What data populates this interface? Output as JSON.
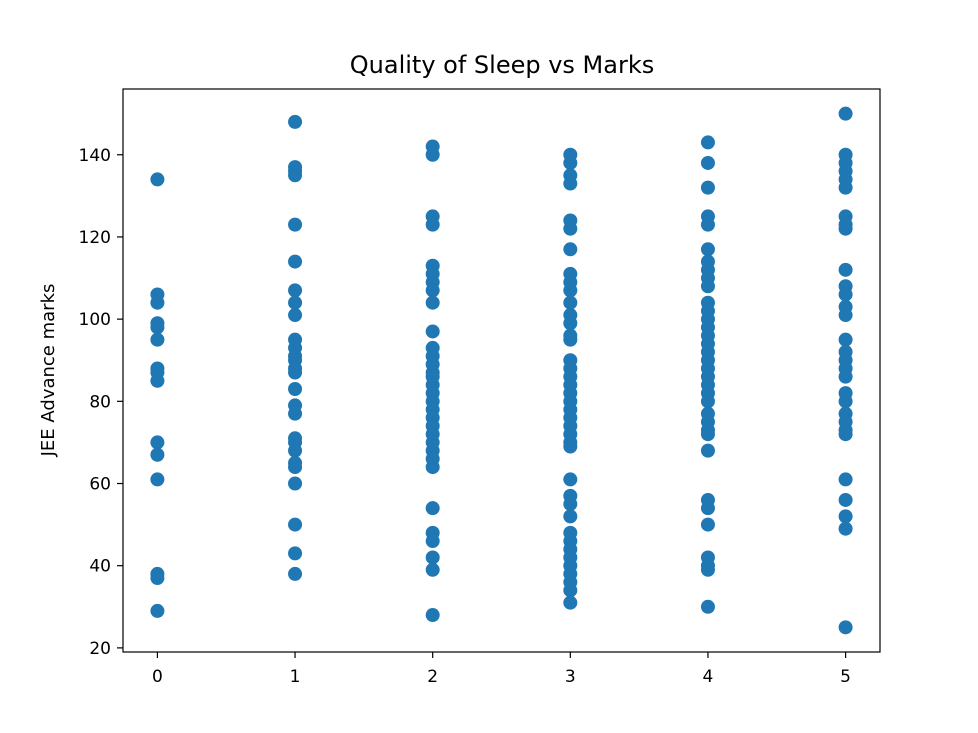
{
  "chart_data": {
    "type": "scatter",
    "title": "Quality of Sleep vs Marks",
    "xlabel": "",
    "ylabel": "JEE Advance marks",
    "xlim": [
      -0.25,
      5.25
    ],
    "ylim": [
      19,
      156
    ],
    "xticks": [
      0,
      1,
      2,
      3,
      4,
      5
    ],
    "yticks": [
      20,
      40,
      60,
      80,
      100,
      120,
      140
    ],
    "color": "#1f77b4",
    "grid": false,
    "series": [
      {
        "points": [
          [
            0,
            134
          ],
          [
            0,
            106
          ],
          [
            0,
            104
          ],
          [
            0,
            99
          ],
          [
            0,
            98
          ],
          [
            0,
            95
          ],
          [
            0,
            88
          ],
          [
            0,
            87
          ],
          [
            0,
            85
          ],
          [
            0,
            70
          ],
          [
            0,
            67
          ],
          [
            0,
            61
          ],
          [
            0,
            38
          ],
          [
            0,
            37
          ],
          [
            0,
            29
          ],
          [
            1,
            148
          ],
          [
            1,
            137
          ],
          [
            1,
            136
          ],
          [
            1,
            135
          ],
          [
            1,
            123
          ],
          [
            1,
            114
          ],
          [
            1,
            107
          ],
          [
            1,
            104
          ],
          [
            1,
            101
          ],
          [
            1,
            95
          ],
          [
            1,
            93
          ],
          [
            1,
            91
          ],
          [
            1,
            90
          ],
          [
            1,
            88
          ],
          [
            1,
            87
          ],
          [
            1,
            83
          ],
          [
            1,
            79
          ],
          [
            1,
            77
          ],
          [
            1,
            71
          ],
          [
            1,
            70
          ],
          [
            1,
            68
          ],
          [
            1,
            65
          ],
          [
            1,
            64
          ],
          [
            1,
            60
          ],
          [
            1,
            50
          ],
          [
            1,
            43
          ],
          [
            1,
            38
          ],
          [
            2,
            142
          ],
          [
            2,
            140
          ],
          [
            2,
            125
          ],
          [
            2,
            123
          ],
          [
            2,
            113
          ],
          [
            2,
            111
          ],
          [
            2,
            109
          ],
          [
            2,
            107
          ],
          [
            2,
            104
          ],
          [
            2,
            97
          ],
          [
            2,
            93
          ],
          [
            2,
            91
          ],
          [
            2,
            89
          ],
          [
            2,
            87
          ],
          [
            2,
            86
          ],
          [
            2,
            84
          ],
          [
            2,
            82
          ],
          [
            2,
            80
          ],
          [
            2,
            78
          ],
          [
            2,
            76
          ],
          [
            2,
            74
          ],
          [
            2,
            72
          ],
          [
            2,
            70
          ],
          [
            2,
            68
          ],
          [
            2,
            66
          ],
          [
            2,
            64
          ],
          [
            2,
            54
          ],
          [
            2,
            48
          ],
          [
            2,
            46
          ],
          [
            2,
            42
          ],
          [
            2,
            39
          ],
          [
            2,
            28
          ],
          [
            3,
            140
          ],
          [
            3,
            138
          ],
          [
            3,
            135
          ],
          [
            3,
            133
          ],
          [
            3,
            124
          ],
          [
            3,
            122
          ],
          [
            3,
            117
          ],
          [
            3,
            111
          ],
          [
            3,
            109
          ],
          [
            3,
            107
          ],
          [
            3,
            104
          ],
          [
            3,
            101
          ],
          [
            3,
            99
          ],
          [
            3,
            96
          ],
          [
            3,
            95
          ],
          [
            3,
            90
          ],
          [
            3,
            88
          ],
          [
            3,
            86
          ],
          [
            3,
            84
          ],
          [
            3,
            82
          ],
          [
            3,
            80
          ],
          [
            3,
            78
          ],
          [
            3,
            76
          ],
          [
            3,
            74
          ],
          [
            3,
            72
          ],
          [
            3,
            70
          ],
          [
            3,
            69
          ],
          [
            3,
            61
          ],
          [
            3,
            57
          ],
          [
            3,
            55
          ],
          [
            3,
            52
          ],
          [
            3,
            48
          ],
          [
            3,
            46
          ],
          [
            3,
            44
          ],
          [
            3,
            42
          ],
          [
            3,
            40
          ],
          [
            3,
            38
          ],
          [
            3,
            36
          ],
          [
            3,
            34
          ],
          [
            3,
            31
          ],
          [
            4,
            143
          ],
          [
            4,
            138
          ],
          [
            4,
            132
          ],
          [
            4,
            125
          ],
          [
            4,
            123
          ],
          [
            4,
            117
          ],
          [
            4,
            114
          ],
          [
            4,
            112
          ],
          [
            4,
            110
          ],
          [
            4,
            108
          ],
          [
            4,
            104
          ],
          [
            4,
            102
          ],
          [
            4,
            100
          ],
          [
            4,
            98
          ],
          [
            4,
            96
          ],
          [
            4,
            94
          ],
          [
            4,
            92
          ],
          [
            4,
            90
          ],
          [
            4,
            88
          ],
          [
            4,
            86
          ],
          [
            4,
            84
          ],
          [
            4,
            82
          ],
          [
            4,
            80
          ],
          [
            4,
            77
          ],
          [
            4,
            75
          ],
          [
            4,
            73
          ],
          [
            4,
            72
          ],
          [
            4,
            68
          ],
          [
            4,
            56
          ],
          [
            4,
            54
          ],
          [
            4,
            50
          ],
          [
            4,
            42
          ],
          [
            4,
            40
          ],
          [
            4,
            39
          ],
          [
            4,
            30
          ],
          [
            5,
            150
          ],
          [
            5,
            140
          ],
          [
            5,
            138
          ],
          [
            5,
            136
          ],
          [
            5,
            134
          ],
          [
            5,
            132
          ],
          [
            5,
            125
          ],
          [
            5,
            123
          ],
          [
            5,
            122
          ],
          [
            5,
            112
          ],
          [
            5,
            108
          ],
          [
            5,
            106
          ],
          [
            5,
            103
          ],
          [
            5,
            101
          ],
          [
            5,
            95
          ],
          [
            5,
            92
          ],
          [
            5,
            90
          ],
          [
            5,
            88
          ],
          [
            5,
            86
          ],
          [
            5,
            82
          ],
          [
            5,
            80
          ],
          [
            5,
            77
          ],
          [
            5,
            75
          ],
          [
            5,
            73
          ],
          [
            5,
            72
          ],
          [
            5,
            61
          ],
          [
            5,
            56
          ],
          [
            5,
            52
          ],
          [
            5,
            49
          ],
          [
            5,
            25
          ]
        ]
      }
    ]
  }
}
